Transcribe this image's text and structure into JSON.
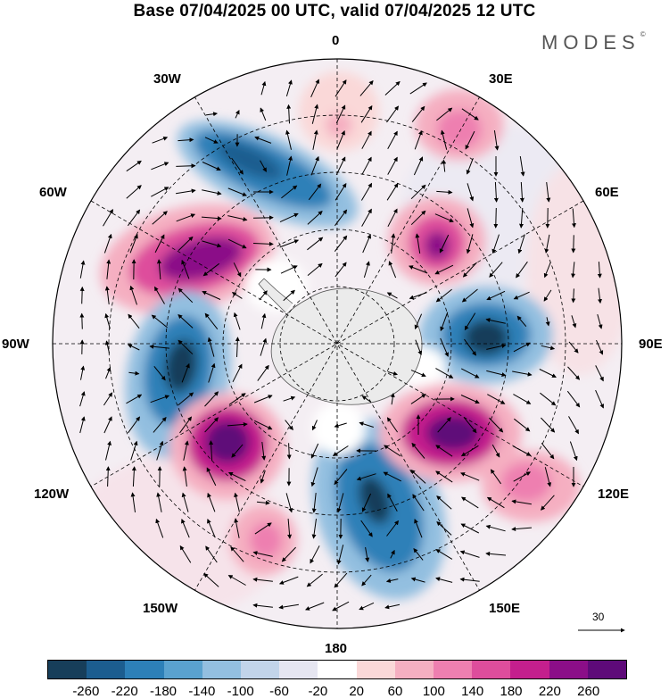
{
  "title": "Base 07/04/2025 00 UTC, valid 07/04/2025 12 UTC",
  "brand": "MODES",
  "brand_mark": "©",
  "longitude_labels": {
    "n0": "0",
    "n30e": "30E",
    "n60e": "60E",
    "e90": "90E",
    "n120e": "120E",
    "n150e": "150E",
    "s180": "180",
    "n150w": "150W",
    "n120w": "120W",
    "w90": "90W",
    "n60w": "60W",
    "n30w": "30W"
  },
  "reference_vector": "30",
  "colorbar": {
    "colors": [
      "#173e5a",
      "#1c5d8f",
      "#2d80b8",
      "#5aa2cf",
      "#93bfe0",
      "#c2d4ea",
      "#e6e6f1",
      "#ffffff",
      "#fad8d8",
      "#f5afc1",
      "#ee7fb0",
      "#de4d9c",
      "#c41f8d",
      "#8b0e88",
      "#5e0a79"
    ],
    "ticks": [
      "-260",
      "-220",
      "-180",
      "-140",
      "-100",
      "-60",
      "-20",
      "20",
      "60",
      "100",
      "140",
      "180",
      "220",
      "260"
    ]
  }
}
